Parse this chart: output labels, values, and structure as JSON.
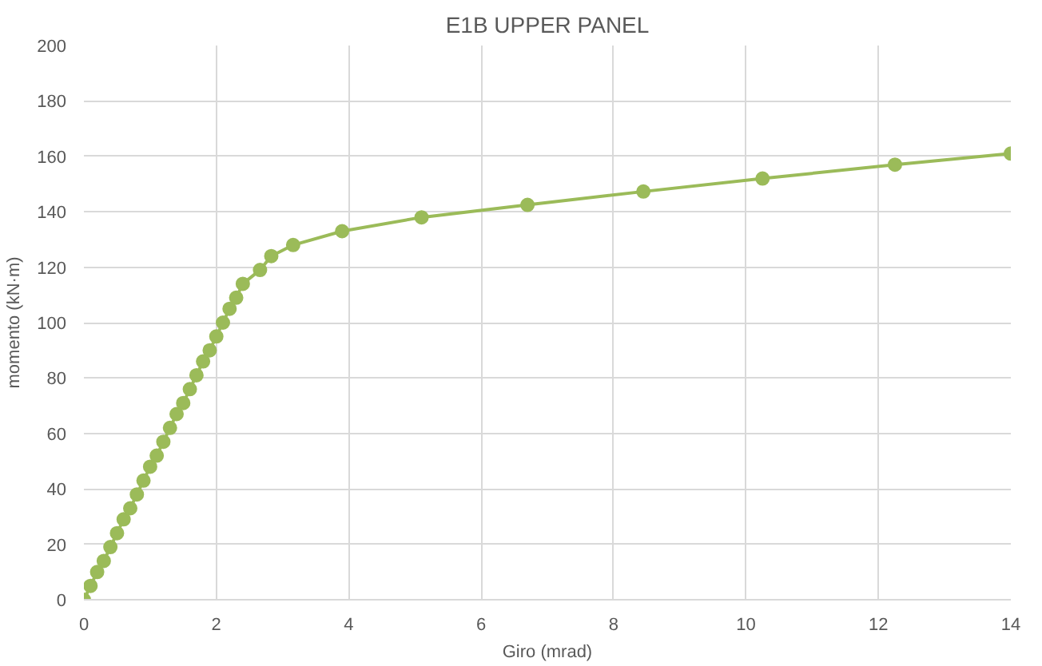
{
  "chart_data": {
    "type": "line",
    "title": "E1B UPPER PANEL",
    "xlabel": "Giro (mrad)",
    "ylabel": "momento (kN·m)",
    "xlim": [
      0,
      14
    ],
    "xticks": [
      0,
      2,
      4,
      6,
      8,
      10,
      12,
      14
    ],
    "ylim": [
      0,
      200
    ],
    "yticks": [
      0,
      20,
      40,
      60,
      80,
      100,
      120,
      140,
      160,
      180,
      200
    ],
    "grid": true,
    "marker": "circle",
    "line_style": "solid",
    "series": [
      {
        "color": "#9bbb59",
        "x": [
          0,
          0.1,
          0.2,
          0.3,
          0.4,
          0.5,
          0.6,
          0.7,
          0.8,
          0.9,
          1.0,
          1.1,
          1.2,
          1.3,
          1.4,
          1.5,
          1.6,
          1.7,
          1.8,
          1.9,
          2.0,
          2.1,
          2.2,
          2.3,
          2.4,
          2.66,
          2.83,
          3.16,
          3.9,
          5.1,
          6.7,
          8.45,
          10.25,
          12.25,
          14
        ],
        "values": [
          0,
          5,
          10,
          14,
          19,
          24,
          29,
          33,
          38,
          43,
          48,
          52,
          57,
          62,
          67,
          71,
          76,
          81,
          86,
          90,
          95,
          100,
          105,
          109,
          114,
          119,
          124,
          128,
          133,
          138,
          142.5,
          147.3,
          152,
          157,
          161
        ]
      }
    ]
  }
}
